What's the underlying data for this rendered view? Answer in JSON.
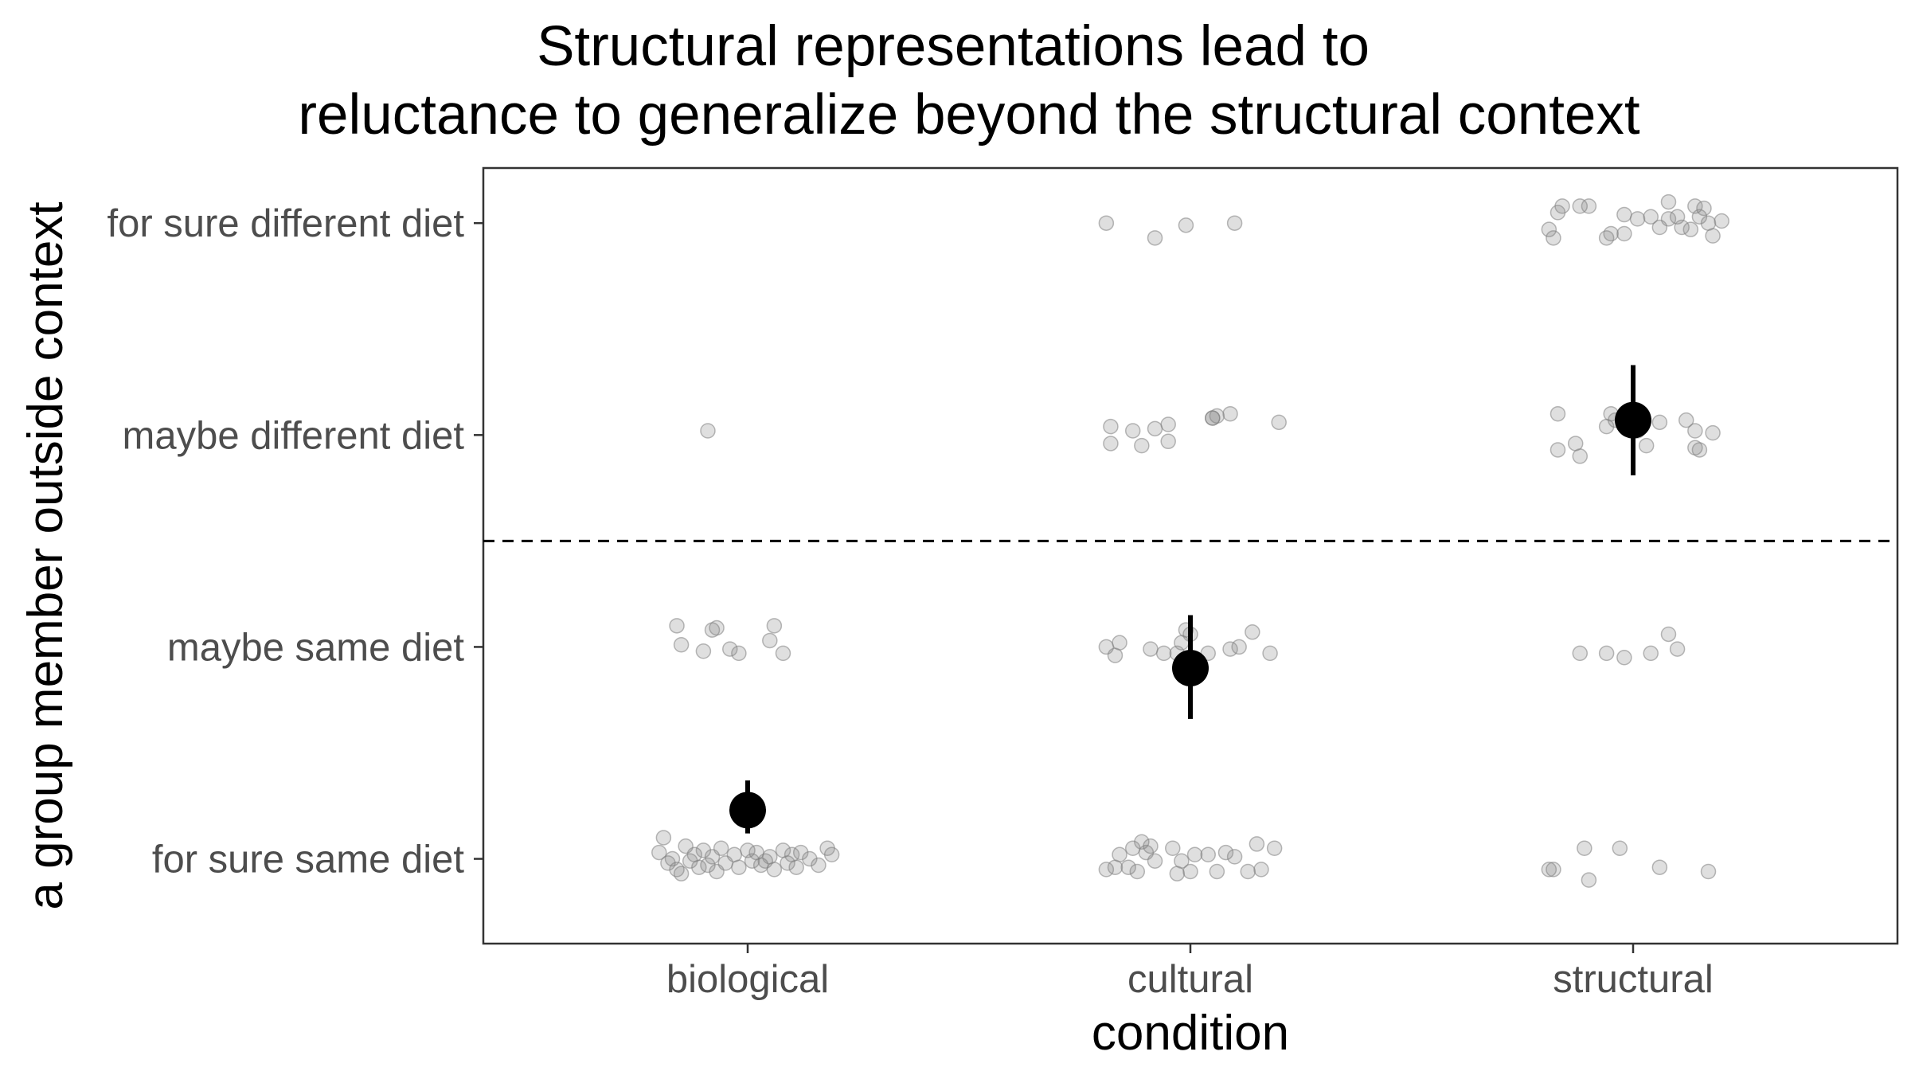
{
  "chart_data": {
    "type": "scatter",
    "title_lines": [
      "Structural representations lead to",
      "reluctance to generalize beyond the structural context"
    ],
    "xlabel": "condition",
    "ylabel": "a group member outside context",
    "categories": [
      "biological",
      "cultural",
      "structural"
    ],
    "y_levels": [
      "for sure same diet",
      "maybe same diet",
      "maybe different diet",
      "for sure different diet"
    ],
    "ylim": [
      0.6,
      4.26
    ],
    "reference_line": {
      "y": 2.5,
      "style": "dashed"
    },
    "grid": false,
    "legend": "none",
    "point_color": "#808080",
    "mean_color": "#000000",
    "raw_points": [
      {
        "condition": "biological",
        "points": [
          [
            -0.2,
            1.03
          ],
          [
            -0.18,
            0.98
          ],
          [
            -0.16,
            0.95
          ],
          [
            -0.14,
            1.06
          ],
          [
            -0.13,
            0.99
          ],
          [
            -0.12,
            1.02
          ],
          [
            -0.11,
            0.96
          ],
          [
            -0.1,
            1.04
          ],
          [
            -0.09,
            0.97
          ],
          [
            -0.08,
            1.01
          ],
          [
            -0.07,
            0.94
          ],
          [
            -0.06,
            1.05
          ],
          [
            -0.05,
            0.98
          ],
          [
            -0.03,
            1.02
          ],
          [
            -0.02,
            0.96
          ],
          [
            0.0,
            1.04
          ],
          [
            0.01,
            0.99
          ],
          [
            0.02,
            1.03
          ],
          [
            0.03,
            0.97
          ],
          [
            0.05,
            1.01
          ],
          [
            0.06,
            0.95
          ],
          [
            0.08,
            1.04
          ],
          [
            0.09,
            0.98
          ],
          [
            0.1,
            1.02
          ],
          [
            0.11,
            0.96
          ],
          [
            0.12,
            1.03
          ],
          [
            0.14,
            1.0
          ],
          [
            0.16,
            0.97
          ],
          [
            0.18,
            1.05
          ],
          [
            0.19,
            1.02
          ],
          [
            -0.19,
            1.1
          ],
          [
            -0.17,
            1.0
          ],
          [
            -0.15,
            0.93
          ],
          [
            0.04,
            0.99
          ],
          [
            -0.16,
            2.1
          ],
          [
            -0.15,
            2.01
          ],
          [
            -0.1,
            1.98
          ],
          [
            -0.08,
            2.08
          ],
          [
            -0.07,
            2.09
          ],
          [
            -0.04,
            1.99
          ],
          [
            -0.02,
            1.97
          ],
          [
            0.05,
            2.03
          ],
          [
            0.06,
            2.1
          ],
          [
            0.08,
            1.97
          ],
          [
            -0.09,
            3.02
          ]
        ]
      },
      {
        "condition": "cultural",
        "points": [
          [
            -0.19,
            0.95
          ],
          [
            -0.17,
            0.96
          ],
          [
            -0.16,
            1.02
          ],
          [
            -0.14,
            0.96
          ],
          [
            -0.13,
            1.05
          ],
          [
            -0.12,
            0.94
          ],
          [
            -0.11,
            1.08
          ],
          [
            -0.1,
            1.03
          ],
          [
            -0.09,
            1.06
          ],
          [
            -0.08,
            0.99
          ],
          [
            -0.04,
            1.05
          ],
          [
            -0.03,
            0.93
          ],
          [
            -0.02,
            0.99
          ],
          [
            0.0,
            0.94
          ],
          [
            0.01,
            1.02
          ],
          [
            0.04,
            1.02
          ],
          [
            0.06,
            0.94
          ],
          [
            0.08,
            1.03
          ],
          [
            0.1,
            1.01
          ],
          [
            0.13,
            0.94
          ],
          [
            0.15,
            1.07
          ],
          [
            0.16,
            0.95
          ],
          [
            0.19,
            1.05
          ],
          [
            -0.19,
            2.0
          ],
          [
            -0.17,
            1.96
          ],
          [
            -0.16,
            2.02
          ],
          [
            -0.09,
            1.99
          ],
          [
            -0.06,
            1.97
          ],
          [
            -0.03,
            1.97
          ],
          [
            -0.02,
            2.02
          ],
          [
            0.04,
            1.97
          ],
          [
            0.09,
            1.99
          ],
          [
            0.11,
            2.0
          ],
          [
            0.14,
            2.07
          ],
          [
            0.18,
            1.97
          ],
          [
            0.0,
            2.06
          ],
          [
            -0.01,
            2.08
          ],
          [
            -0.18,
            3.04
          ],
          [
            -0.18,
            2.96
          ],
          [
            -0.13,
            3.02
          ],
          [
            -0.11,
            2.95
          ],
          [
            -0.08,
            3.03
          ],
          [
            -0.05,
            2.97
          ],
          [
            -0.05,
            3.05
          ],
          [
            0.05,
            3.08
          ],
          [
            0.06,
            3.09
          ],
          [
            0.09,
            3.1
          ],
          [
            0.2,
            3.06
          ],
          [
            0.05,
            3.08
          ],
          [
            -0.19,
            4.0
          ],
          [
            -0.08,
            3.93
          ],
          [
            -0.01,
            3.99
          ],
          [
            0.1,
            4.0
          ]
        ]
      },
      {
        "condition": "structural",
        "points": [
          [
            -0.19,
            0.95
          ],
          [
            -0.18,
            0.95
          ],
          [
            -0.11,
            1.05
          ],
          [
            -0.1,
            0.9
          ],
          [
            -0.03,
            1.05
          ],
          [
            0.06,
            0.96
          ],
          [
            0.17,
            0.94
          ],
          [
            -0.12,
            1.97
          ],
          [
            -0.06,
            1.97
          ],
          [
            -0.02,
            1.95
          ],
          [
            0.04,
            1.97
          ],
          [
            0.08,
            2.06
          ],
          [
            0.1,
            1.99
          ],
          [
            -0.17,
            3.1
          ],
          [
            -0.17,
            2.93
          ],
          [
            -0.13,
            2.96
          ],
          [
            -0.12,
            2.9
          ],
          [
            -0.06,
            3.04
          ],
          [
            -0.05,
            3.1
          ],
          [
            -0.04,
            3.07
          ],
          [
            0.01,
            3.02
          ],
          [
            0.03,
            2.95
          ],
          [
            0.06,
            3.06
          ],
          [
            0.12,
            3.07
          ],
          [
            0.14,
            2.94
          ],
          [
            0.15,
            2.93
          ],
          [
            0.14,
            3.02
          ],
          [
            0.18,
            3.01
          ],
          [
            -0.19,
            3.97
          ],
          [
            -0.18,
            3.93
          ],
          [
            -0.17,
            4.05
          ],
          [
            -0.16,
            4.08
          ],
          [
            -0.12,
            4.08
          ],
          [
            -0.1,
            4.08
          ],
          [
            -0.06,
            3.93
          ],
          [
            -0.05,
            3.95
          ],
          [
            -0.02,
            4.04
          ],
          [
            -0.02,
            3.95
          ],
          [
            0.01,
            4.02
          ],
          [
            0.04,
            4.03
          ],
          [
            0.06,
            3.98
          ],
          [
            0.08,
            4.02
          ],
          [
            0.1,
            4.03
          ],
          [
            0.08,
            4.1
          ],
          [
            0.11,
            3.98
          ],
          [
            0.13,
            3.97
          ],
          [
            0.14,
            4.08
          ],
          [
            0.15,
            4.03
          ],
          [
            0.17,
            4.0
          ],
          [
            0.18,
            3.94
          ],
          [
            0.16,
            4.07
          ],
          [
            0.2,
            4.01
          ]
        ]
      }
    ],
    "means": [
      {
        "condition": "biological",
        "mean": 1.23,
        "ci_low": 1.12,
        "ci_high": 1.37
      },
      {
        "condition": "cultural",
        "mean": 1.9,
        "ci_low": 1.66,
        "ci_high": 2.15
      },
      {
        "condition": "structural",
        "mean": 3.07,
        "ci_low": 2.81,
        "ci_high": 3.33
      }
    ]
  }
}
